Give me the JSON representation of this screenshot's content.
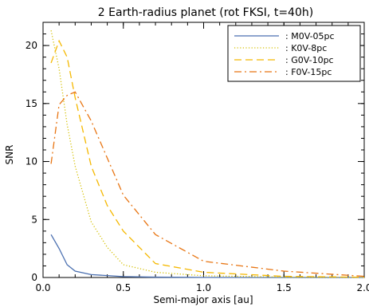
{
  "chart_data": {
    "type": "line",
    "title": "2 Earth-radius planet (rot FKSI, t=40h)",
    "xlabel": "Semi-major axis [au]",
    "ylabel": "SNR",
    "xlim": [
      0.0,
      2.0
    ],
    "ylim": [
      0,
      22
    ],
    "x_ticks": [
      "0.0",
      "0.5",
      "1.0",
      "1.5",
      "2.0"
    ],
    "y_ticks": [
      "0",
      "5",
      "10",
      "15",
      "20"
    ],
    "x_tick_values": [
      0.0,
      0.5,
      1.0,
      1.5,
      2.0
    ],
    "y_tick_values": [
      0,
      5,
      10,
      15,
      20
    ],
    "legend_position": "top-right",
    "series": [
      {
        "name": ": M0V-05pc",
        "color": "#4a6fb0",
        "dash": "solid",
        "points": [
          [
            0.05,
            3.7
          ],
          [
            0.1,
            2.5
          ],
          [
            0.15,
            1.1
          ],
          [
            0.2,
            0.55
          ],
          [
            0.3,
            0.25
          ],
          [
            0.5,
            0.08
          ],
          [
            0.7,
            0.03
          ],
          [
            1.0,
            0.01
          ],
          [
            1.5,
            0.0
          ],
          [
            2.0,
            0.0
          ]
        ]
      },
      {
        "name": ": K0V-8pc",
        "color": "#d4c000",
        "dash": "dotted",
        "points": [
          [
            0.05,
            21.3
          ],
          [
            0.1,
            18.0
          ],
          [
            0.15,
            13.2
          ],
          [
            0.2,
            9.6
          ],
          [
            0.3,
            4.8
          ],
          [
            0.4,
            2.6
          ],
          [
            0.5,
            1.1
          ],
          [
            0.7,
            0.45
          ],
          [
            1.0,
            0.15
          ],
          [
            1.5,
            0.03
          ],
          [
            2.0,
            0.01
          ]
        ]
      },
      {
        "name": ": G0V-10pc",
        "color": "#f5b800",
        "dash": "dashed",
        "points": [
          [
            0.05,
            18.5
          ],
          [
            0.1,
            20.4
          ],
          [
            0.15,
            19.0
          ],
          [
            0.2,
            15.5
          ],
          [
            0.3,
            9.6
          ],
          [
            0.4,
            6.2
          ],
          [
            0.5,
            4.0
          ],
          [
            0.6,
            2.6
          ],
          [
            0.7,
            1.2
          ],
          [
            1.0,
            0.45
          ],
          [
            1.5,
            0.1
          ],
          [
            2.0,
            0.02
          ]
        ]
      },
      {
        "name": ": F0V-15pc",
        "color": "#e87513",
        "dash": "dashdot",
        "points": [
          [
            0.05,
            9.8
          ],
          [
            0.1,
            14.9
          ],
          [
            0.15,
            15.7
          ],
          [
            0.2,
            16.0
          ],
          [
            0.3,
            13.5
          ],
          [
            0.5,
            7.1
          ],
          [
            0.7,
            3.7
          ],
          [
            1.0,
            1.4
          ],
          [
            1.5,
            0.55
          ],
          [
            2.0,
            0.1
          ]
        ]
      }
    ]
  }
}
